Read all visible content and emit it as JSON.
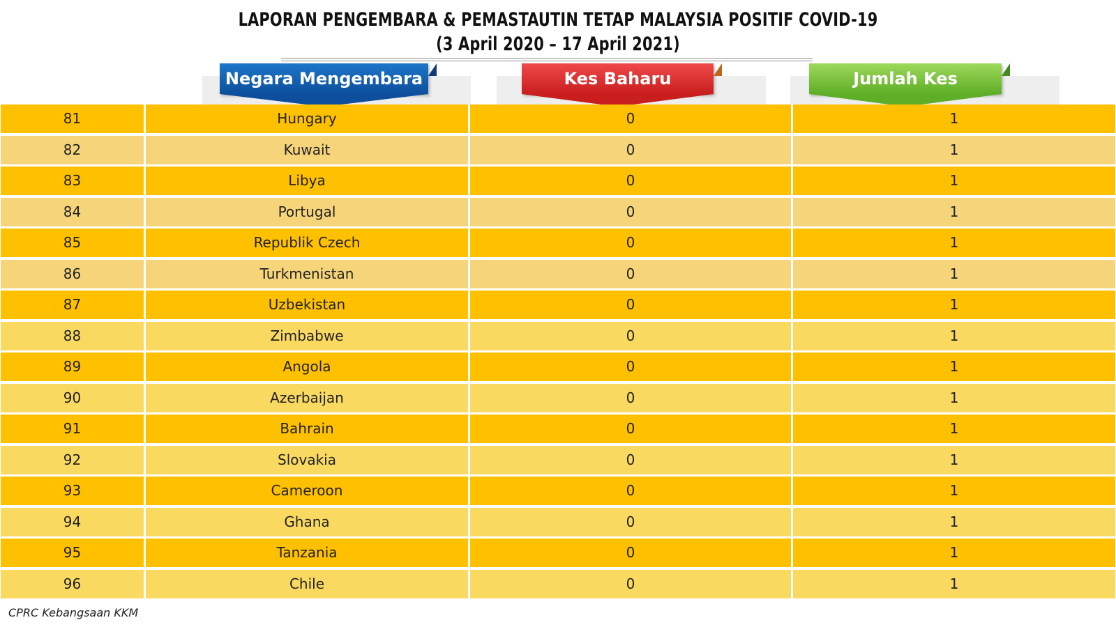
{
  "title_line1": "LAPORAN PENGEMBARA & PEMASTAUTIN TETAP MALAYSIA POSITIF COVID-19",
  "title_line2": "(3 April 2020 – 17 April  2021)",
  "headers": {
    "country": "Negara Mengembara",
    "new_cases": "Kes Baharu",
    "total_cases": "Jumlah Kes"
  },
  "colors": {
    "row_dark": "#ffc000",
    "row_light": "#f6d57a",
    "header_blue": "#1565c0",
    "header_red": "#e53935",
    "header_green": "#7cc242"
  },
  "rows": [
    {
      "no": "81",
      "country": "Hungary",
      "new": "0",
      "total": "1"
    },
    {
      "no": "82",
      "country": "Kuwait",
      "new": "0",
      "total": "1"
    },
    {
      "no": "83",
      "country": "Libya",
      "new": "0",
      "total": "1"
    },
    {
      "no": "84",
      "country": "Portugal",
      "new": "0",
      "total": "1"
    },
    {
      "no": "85",
      "country": "Republik Czech",
      "new": "0",
      "total": "1"
    },
    {
      "no": "86",
      "country": "Turkmenistan",
      "new": "0",
      "total": "1"
    },
    {
      "no": "87",
      "country": "Uzbekistan",
      "new": "0",
      "total": "1"
    },
    {
      "no": "88",
      "country": "Zimbabwe",
      "new": "0",
      "total": "1"
    },
    {
      "no": "89",
      "country": "Angola",
      "new": "0",
      "total": "1"
    },
    {
      "no": "90",
      "country": "Azerbaijan",
      "new": "0",
      "total": "1"
    },
    {
      "no": "91",
      "country": "Bahrain",
      "new": "0",
      "total": "1"
    },
    {
      "no": "92",
      "country": "Slovakia",
      "new": "0",
      "total": "1"
    },
    {
      "no": "93",
      "country": "Cameroon",
      "new": "0",
      "total": "1"
    },
    {
      "no": "94",
      "country": "Ghana",
      "new": "0",
      "total": "1"
    },
    {
      "no": "95",
      "country": "Tanzania",
      "new": "0",
      "total": "1"
    },
    {
      "no": "96",
      "country": "Chile",
      "new": "0",
      "total": "1"
    }
  ],
  "footer": "CPRC Kebangsaan KKM"
}
